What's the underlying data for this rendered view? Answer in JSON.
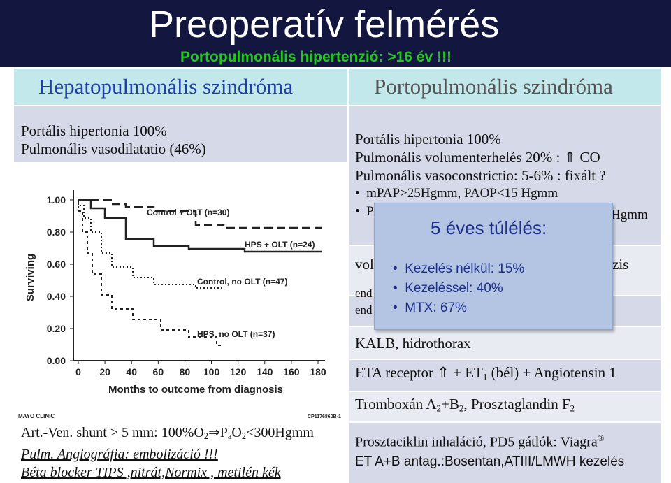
{
  "header": {
    "title": "Preoperatív felmérés",
    "subtitle": "Portopulmonális hipertenzió:  >16 év !!!"
  },
  "left": {
    "heading": "Hepatopulmonális szindróma",
    "intro": [
      "Portális hipertonia 100%",
      "Pulmonális vasodilatatio (46%)"
    ],
    "chart": {
      "y_label": "Surviving",
      "x_label": "Months to outcome from diagnosis",
      "yticks": [
        "1.00",
        "0.80",
        "0.60",
        "0.40",
        "0.20",
        "0.00"
      ],
      "xticks": [
        "0",
        "20",
        "40",
        "60",
        "80",
        "100",
        "120",
        "140",
        "160",
        "180"
      ],
      "curve_labels": [
        "Control + OLT (n=30)",
        "HPS + OLT (n=24)",
        "Control, no OLT (n=47)",
        "HPS, no OLT (n=37)"
      ],
      "logo": "MAYO CLINIC",
      "code": "CP1176860B-1"
    },
    "footer": [
      [
        "Art.-Ven. shunt > 5 mm:  100%O",
        "2",
        "⇒P",
        "a",
        "O",
        "2",
        "<300Hgmm"
      ],
      "Pulm. Angiográfia: embolizáció !!!",
      "Béta blocker TIPS ,nitrát,Normix , metilén kék"
    ]
  },
  "right": {
    "heading": "Portopulmonális szindróma",
    "rows": {
      "intro": [
        "Portális hipertonia 100%",
        [
          "Pulmonális volumenterhelés  20% : ",
          "⇑",
          " CO"
        ],
        "Pulmonális  vasoconstrictio:  5-6% : fixált  ?"
      ],
      "bullets": [
        "mPAP>25Hgmm, PAOP<15 Hgmm",
        [
          "P",
          "Hgmm"
        ]
      ],
      "partial": [
        [
          "vol",
          "zis"
        ],
        [
          "end",
          "end"
        ]
      ],
      "kalb": "KALB, hidrothorax",
      "eta": [
        "ETA  receptor  ",
        "⇑",
        "  + ET",
        "1",
        " (bél) + Angiotensin 1"
      ],
      "tromb": [
        "Tromboxán A",
        "2",
        "+B",
        "2",
        ",  Prosztaglandin F",
        "2"
      ],
      "therapy": [
        [
          "Prosztaciklin inhaláció, PD5 gátlók: Viagra",
          "®"
        ],
        "ET A+B antag.:Bosentan,ATIII/LMWH kezelés"
      ]
    }
  },
  "callout": {
    "title": "5 éves túlélés:",
    "items": [
      "Kezelés nélkül: 15%",
      "Kezeléssel: 40%",
      "MTX:  67%"
    ]
  }
}
